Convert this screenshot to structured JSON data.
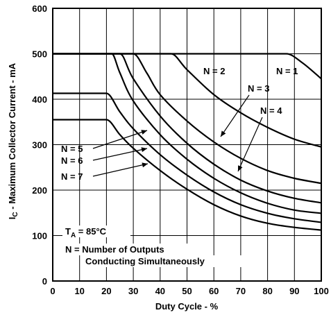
{
  "chart_data": {
    "type": "line",
    "xlabel": "Duty Cycle -  %",
    "ylabel_main": "I",
    "ylabel_sub": "C",
    "ylabel_rest": " - Maximum Collector Current - mA",
    "x_ticks": [
      "0",
      "10",
      "20",
      "30",
      "40",
      "50",
      "60",
      "70",
      "80",
      "90",
      "100"
    ],
    "y_ticks": [
      "0",
      "100",
      "200",
      "300",
      "400",
      "500",
      "600"
    ],
    "xlim": [
      0,
      100
    ],
    "ylim": [
      0,
      600
    ],
    "grid": true,
    "series": [
      {
        "name": "N = 1",
        "points": [
          [
            0,
            500
          ],
          [
            87,
            500
          ],
          [
            93,
            480
          ],
          [
            100,
            445
          ]
        ]
      },
      {
        "name": "N = 2",
        "points": [
          [
            0,
            500
          ],
          [
            44,
            500
          ],
          [
            50,
            465
          ],
          [
            60,
            410
          ],
          [
            70,
            370
          ],
          [
            80,
            338
          ],
          [
            90,
            312
          ],
          [
            100,
            295
          ]
        ]
      },
      {
        "name": "N = 3",
        "points": [
          [
            0,
            500
          ],
          [
            30,
            500
          ],
          [
            35,
            458
          ],
          [
            40,
            410
          ],
          [
            50,
            352
          ],
          [
            60,
            306
          ],
          [
            70,
            270
          ],
          [
            80,
            243
          ],
          [
            90,
            226
          ],
          [
            100,
            215
          ]
        ]
      },
      {
        "name": "N = 4",
        "points": [
          [
            0,
            500
          ],
          [
            25,
            500
          ],
          [
            30,
            445
          ],
          [
            40,
            363
          ],
          [
            50,
            303
          ],
          [
            60,
            257
          ],
          [
            70,
            222
          ],
          [
            80,
            198
          ],
          [
            90,
            182
          ],
          [
            100,
            172
          ]
        ]
      },
      {
        "name": "N = 5",
        "points": [
          [
            0,
            500
          ],
          [
            22,
            500
          ],
          [
            25,
            458
          ],
          [
            30,
            396
          ],
          [
            40,
            322
          ],
          [
            50,
            268
          ],
          [
            60,
            226
          ],
          [
            70,
            194
          ],
          [
            80,
            171
          ],
          [
            90,
            156
          ],
          [
            100,
            149
          ]
        ]
      },
      {
        "name": "N = 6",
        "points": [
          [
            0,
            413
          ],
          [
            20,
            413
          ],
          [
            25,
            372
          ],
          [
            30,
            335
          ],
          [
            40,
            278
          ],
          [
            50,
            233
          ],
          [
            60,
            196
          ],
          [
            70,
            168
          ],
          [
            80,
            149
          ],
          [
            90,
            137
          ],
          [
            100,
            129
          ]
        ]
      },
      {
        "name": "N = 7",
        "points": [
          [
            0,
            355
          ],
          [
            20,
            355
          ],
          [
            25,
            322
          ],
          [
            30,
            292
          ],
          [
            40,
            243
          ],
          [
            50,
            202
          ],
          [
            60,
            168
          ],
          [
            70,
            143
          ],
          [
            80,
            127
          ],
          [
            90,
            118
          ],
          [
            100,
            112
          ]
        ]
      }
    ],
    "annotations": {
      "ta_main": "T",
      "ta_sub": "A",
      "ta_rest": " = 85°C",
      "note_line1": "N = Number of Outputs",
      "note_line2": "Conducting Simultaneously"
    }
  }
}
